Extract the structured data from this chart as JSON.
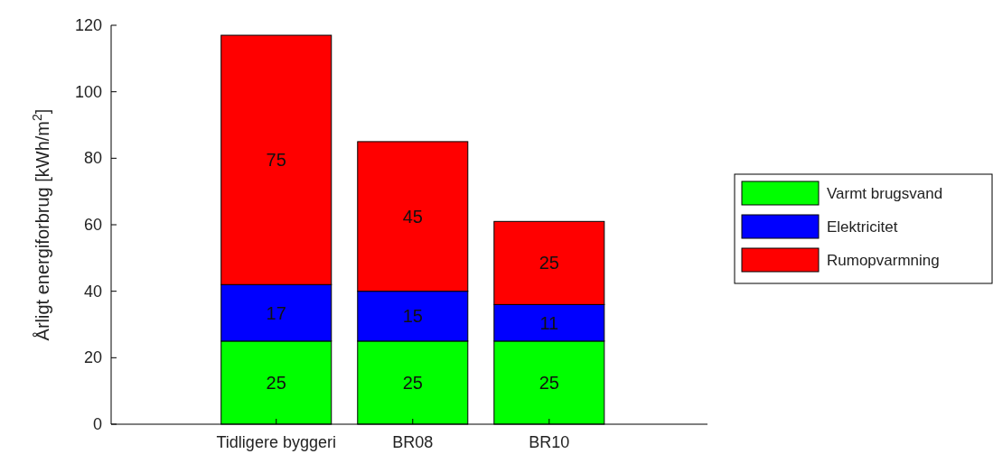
{
  "chart_data": {
    "type": "bar",
    "stacked": true,
    "ylabel": "Årligt energiforbrug [kWh/m$^{2}$]",
    "categories": [
      "Tidligere byggeri",
      "BR08",
      "BR10"
    ],
    "series": [
      {
        "name": "Varmt brugsvand",
        "color": "#00ff00",
        "values": [
          25,
          25,
          25
        ]
      },
      {
        "name": "Elektricitet",
        "color": "#0000ff",
        "values": [
          17,
          15,
          11
        ]
      },
      {
        "name": "Rumopvarmning",
        "color": "#ff0000",
        "values": [
          75,
          45,
          25
        ]
      }
    ],
    "ylim": [
      0,
      120
    ],
    "yticks": [
      0,
      20,
      40,
      60,
      80,
      100,
      120
    ],
    "data_labels": true,
    "legend": "right"
  }
}
